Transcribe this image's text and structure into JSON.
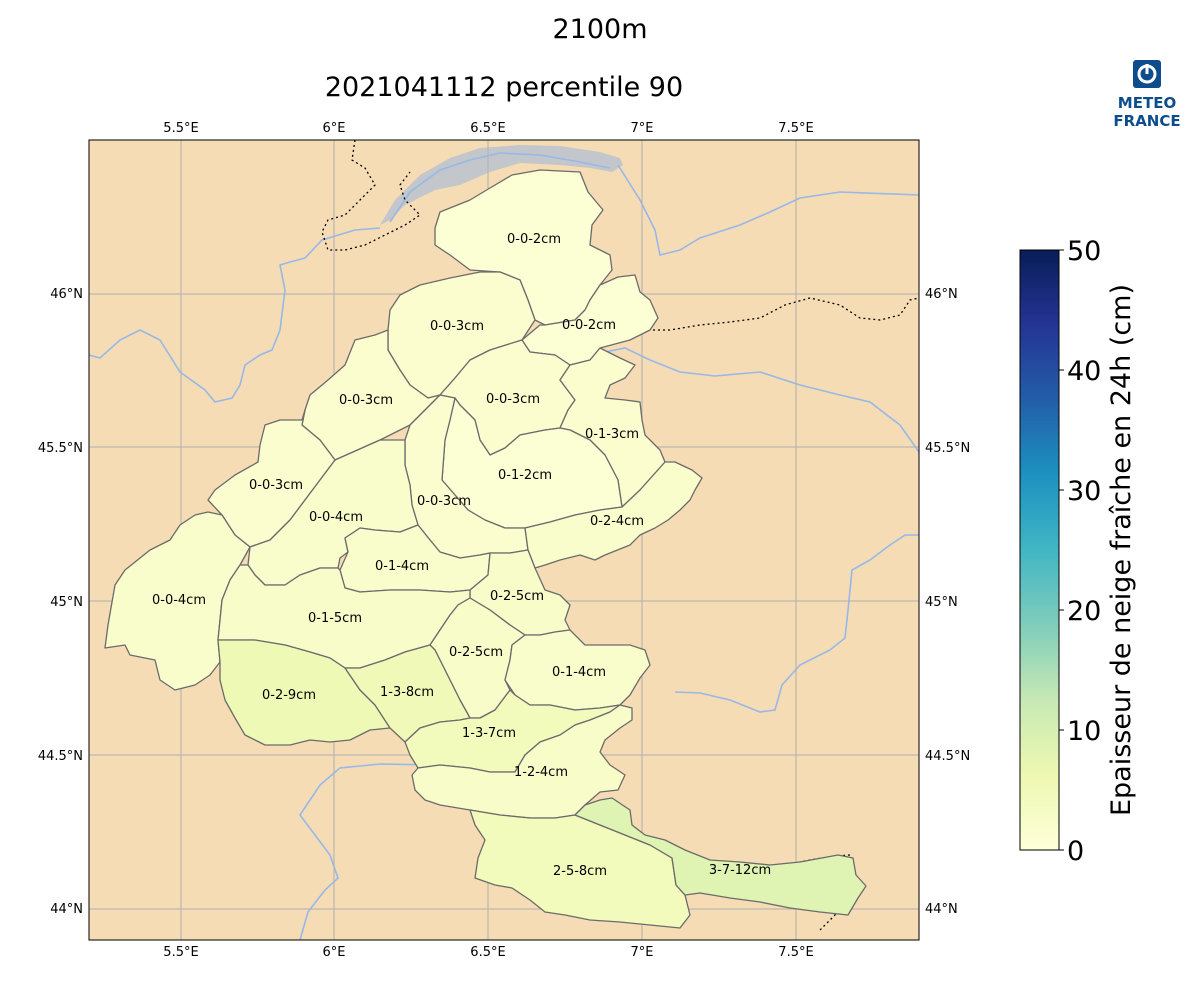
{
  "header": {
    "altitude": "2100m",
    "subtitle": "2021041112 percentile 90"
  },
  "logo": {
    "line1": "METEO",
    "line2": "FRANCE"
  },
  "axes": {
    "lon_ticks": [
      "5.5°E",
      "6°E",
      "6.5°E",
      "7°E",
      "7.5°E"
    ],
    "lat_ticks": [
      "46°N",
      "45.5°N",
      "45°N",
      "44.5°N",
      "44°N"
    ]
  },
  "colorbar": {
    "title": "Epaisseur de neige fraîche en 24h (cm)",
    "ticks": [
      "0",
      "10",
      "20",
      "30",
      "40",
      "50"
    ],
    "range": [
      0,
      50
    ]
  },
  "colors": {
    "land": "#f5dcb5",
    "lake": "#c3c6ca",
    "river": "#97b8e8",
    "zone_border": "#6b6b6b",
    "grid": "#b0b0b0"
  },
  "zones": [
    {
      "label": "0-0-2cm",
      "value": 1
    },
    {
      "label": "0-0-2cm",
      "value": 1
    },
    {
      "label": "0-0-3cm",
      "value": 1.5
    },
    {
      "label": "0-0-3cm",
      "value": 1.5
    },
    {
      "label": "0-0-3cm",
      "value": 1.5
    },
    {
      "label": "0-1-3cm",
      "value": 1.5
    },
    {
      "label": "0-0-3cm",
      "value": 1.5
    },
    {
      "label": "0-1-2cm",
      "value": 1
    },
    {
      "label": "0-0-3cm",
      "value": 1.5
    },
    {
      "label": "0-0-4cm",
      "value": 2
    },
    {
      "label": "0-2-4cm",
      "value": 2
    },
    {
      "label": "0-1-4cm",
      "value": 2
    },
    {
      "label": "0-0-4cm",
      "value": 2
    },
    {
      "label": "0-2-5cm",
      "value": 2.5
    },
    {
      "label": "0-1-5cm",
      "value": 2.5
    },
    {
      "label": "0-2-5cm",
      "value": 2.5
    },
    {
      "label": "0-1-4cm",
      "value": 2
    },
    {
      "label": "0-2-9cm",
      "value": 5.5
    },
    {
      "label": "1-3-8cm",
      "value": 5
    },
    {
      "label": "1-3-7cm",
      "value": 4.5
    },
    {
      "label": "1-2-4cm",
      "value": 2.5
    },
    {
      "label": "2-5-8cm",
      "value": 4.5
    },
    {
      "label": "3-7-12cm",
      "value": 8.5
    }
  ]
}
